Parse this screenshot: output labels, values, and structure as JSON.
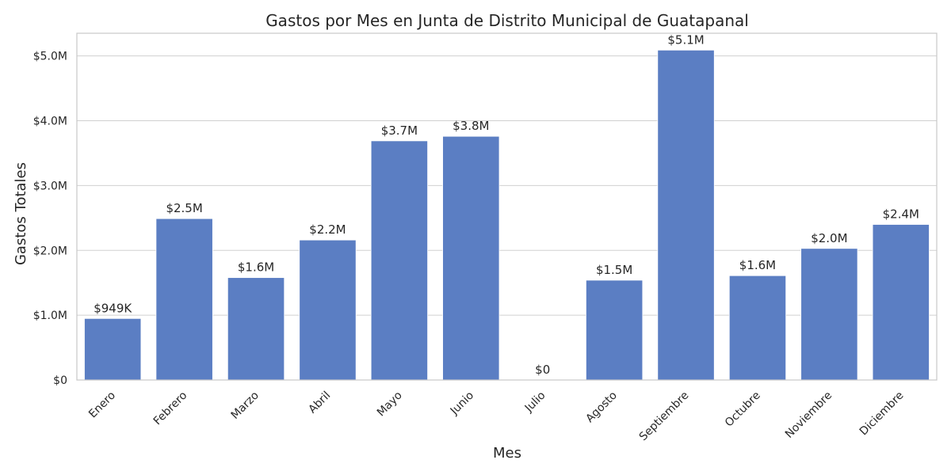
{
  "chart_data": {
    "type": "bar",
    "title": "Gastos por Mes en Junta de Distrito Municipal de Guatapanal",
    "xlabel": "Mes",
    "ylabel": "Gastos Totales",
    "categories": [
      "Enero",
      "Febrero",
      "Marzo",
      "Abril",
      "Mayo",
      "Junio",
      "Julio",
      "Agosto",
      "Septiembre",
      "Octubre",
      "Noviembre",
      "Diciembre"
    ],
    "values": [
      949000,
      2490000,
      1580000,
      2160000,
      3690000,
      3760000,
      0,
      1540000,
      5090000,
      1610000,
      2030000,
      2400000
    ],
    "value_labels": [
      "$949K",
      "$2.5M",
      "$1.6M",
      "$2.2M",
      "$3.7M",
      "$3.8M",
      "$0",
      "$1.5M",
      "$5.1M",
      "$1.6M",
      "$2.0M",
      "$2.4M"
    ],
    "yticks": [
      0,
      1000000,
      2000000,
      3000000,
      4000000,
      5000000
    ],
    "ytick_labels": [
      "$0",
      "$1.0M",
      "$2.0M",
      "$3.0M",
      "$4.0M",
      "$5.0M"
    ],
    "ylim": [
      0,
      5350000
    ],
    "grid": true,
    "bar_color": "#5b7ec3"
  }
}
